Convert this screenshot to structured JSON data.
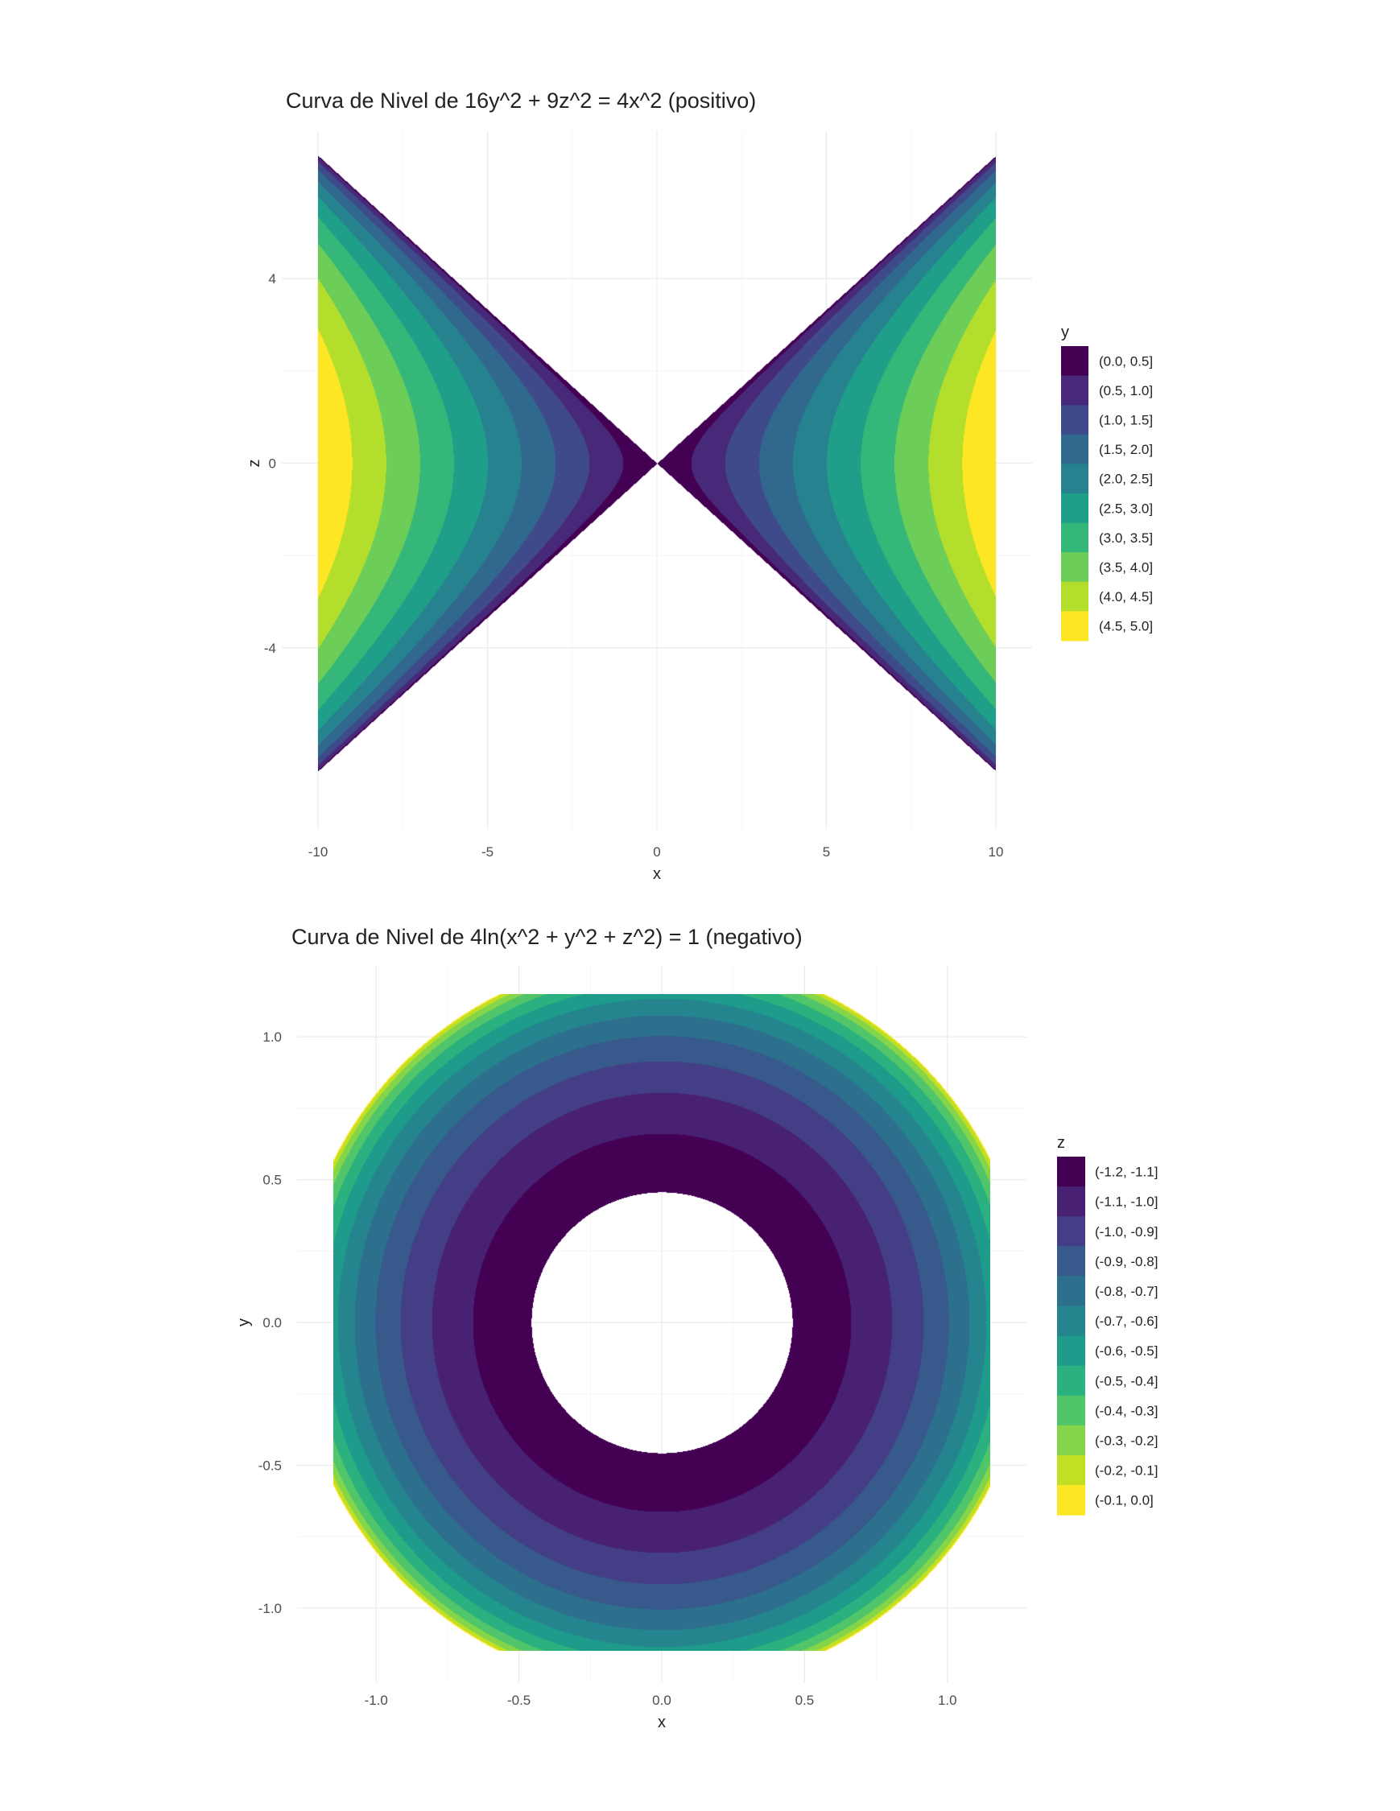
{
  "chart_data": [
    {
      "type": "heatmap",
      "title": "Curva de Nivel de 16y^2 + 9z^2 = 4x^2 (positivo)",
      "xlabel": "x",
      "ylabel": "z",
      "xlim": [
        -10,
        10
      ],
      "ylim": [
        -6.67,
        6.67
      ],
      "x_ticks": [
        -10,
        -5,
        0,
        5,
        10
      ],
      "x_tick_labels": [
        "-10",
        "-5",
        "0",
        "5",
        "10"
      ],
      "y_ticks": [
        -4,
        0,
        4
      ],
      "y_tick_labels": [
        "-4",
        "0",
        "4"
      ],
      "grid": true,
      "legend_position": "right",
      "legend_title": "y",
      "fill_variable": "y",
      "legend_entries": [
        "(0.0, 0.5]",
        "(0.5, 1.0]",
        "(1.0, 1.5]",
        "(1.5, 2.0]",
        "(2.0, 2.5]",
        "(2.5, 3.0]",
        "(3.0, 3.5]",
        "(3.5, 4.0]",
        "(4.0, 4.5]",
        "(4.5, 5.0]"
      ],
      "bin_edges": [
        0,
        0.5,
        1,
        1.5,
        2,
        2.5,
        3,
        3.5,
        4,
        4.5,
        5
      ],
      "colors": [
        "#440154",
        "#482878",
        "#3E4A89",
        "#31688E",
        "#26828E",
        "#1F9E89",
        "#35B779",
        "#6DCD59",
        "#B4DE2C",
        "#FDE725"
      ],
      "surface": "y = sqrt((4x^2 - 9z^2) / 16)"
    },
    {
      "type": "heatmap",
      "title": "Curva de Nivel de 4ln(x^2 + y^2 + z^2) = 1 (negativo)",
      "xlabel": "x",
      "ylabel": "y",
      "xlim": [
        -1.15,
        1.15
      ],
      "ylim": [
        -1.15,
        1.15
      ],
      "x_ticks": [
        -1,
        -0.5,
        0,
        0.5,
        1
      ],
      "x_tick_labels": [
        "-1.0",
        "-0.5",
        "0.0",
        "0.5",
        "1.0"
      ],
      "y_ticks": [
        -1,
        -0.5,
        0,
        0.5,
        1
      ],
      "y_tick_labels": [
        "-1.0",
        "-0.5",
        "0.0",
        "0.5",
        "1.0"
      ],
      "grid": true,
      "legend_position": "right",
      "legend_title": "z",
      "fill_variable": "z",
      "legend_entries": [
        "(-1.2, -1.1]",
        "(-1.1, -1.0]",
        "(-1.0, -0.9]",
        "(-0.9, -0.8]",
        "(-0.8, -0.7]",
        "(-0.7, -0.6]",
        "(-0.6, -0.5]",
        "(-0.5, -0.4]",
        "(-0.4, -0.3]",
        "(-0.3, -0.2]",
        "(-0.2, -0.1]",
        "(-0.1, 0.0]"
      ],
      "bin_edges": [
        -1.2,
        -1.1,
        -1.0,
        -0.9,
        -0.8,
        -0.7,
        -0.6,
        -0.5,
        -0.4,
        -0.3,
        -0.2,
        -0.1,
        0.0
      ],
      "colors": [
        "#440154",
        "#482173",
        "#433E85",
        "#38598C",
        "#2D708E",
        "#25858E",
        "#1E9B8A",
        "#2BB07F",
        "#51C56A",
        "#85D54A",
        "#C2DF23",
        "#FDE725"
      ],
      "surface": "z = -sqrt(e^(1/2) - x^2 - y^2)"
    }
  ]
}
